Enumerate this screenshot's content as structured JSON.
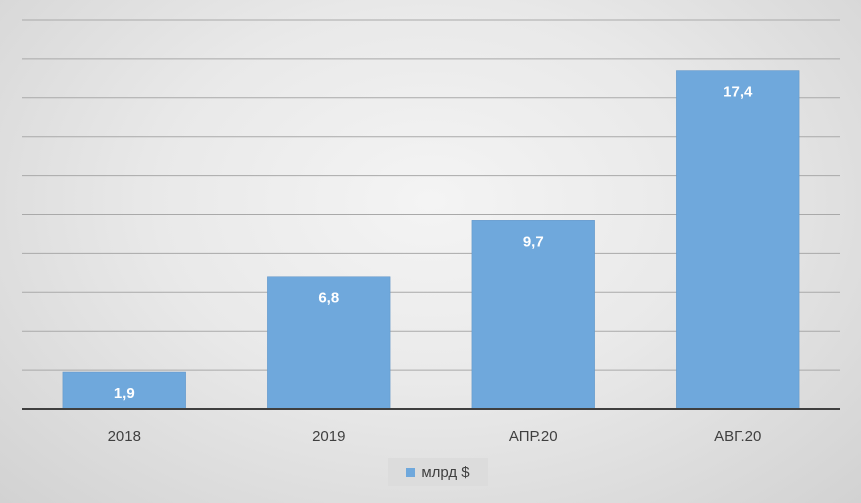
{
  "chart_data": {
    "type": "bar",
    "categories": [
      "2018",
      "2019",
      "АПР.20",
      "АВГ.20"
    ],
    "series": [
      {
        "name": "млрд $",
        "values": [
          1.9,
          6.8,
          9.7,
          17.4
        ],
        "labels": [
          "1,9",
          "6,8",
          "9,7",
          "17,4"
        ]
      }
    ],
    "ylim": [
      0,
      20
    ],
    "grid": true,
    "legend": "bottom",
    "colors": {
      "bar": "#6fa8dc"
    }
  }
}
